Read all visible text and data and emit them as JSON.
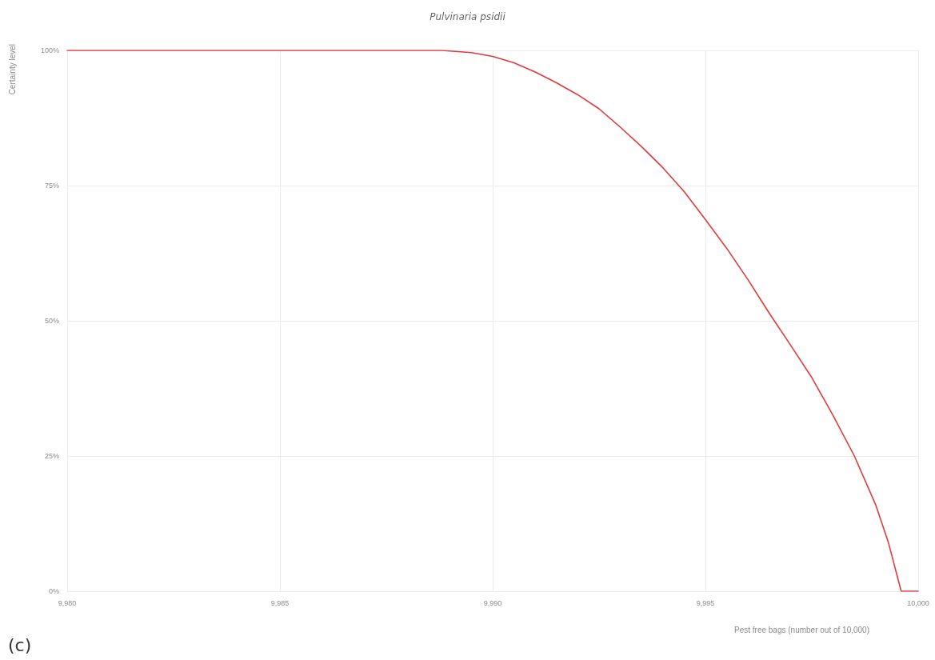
{
  "chart_data": {
    "type": "line",
    "title": "Pulvinaria psidii",
    "xlabel": "Pest free bags (number out of 10,000)",
    "ylabel": "Certainty level",
    "annotations": [
      "(c)"
    ],
    "x": [
      9980,
      9988.8,
      9989.5,
      9990,
      9990.5,
      9991,
      9991.5,
      9992,
      9992.5,
      9993,
      9993.5,
      9994,
      9994.5,
      9995,
      9995.5,
      9996,
      9996.5,
      9997,
      9997.5,
      9998,
      9998.5,
      9999,
      9999.3,
      9999.6,
      10000
    ],
    "series": [
      {
        "color": "#e03a3c",
        "values": [
          100,
          100,
          99.6,
          98.9,
          97.7,
          96,
          94,
          91.8,
          89.2,
          85.8,
          82.2,
          78.3,
          73.9,
          68.7,
          63.4,
          57.6,
          51.4,
          45.5,
          39.5,
          32.5,
          25,
          16,
          9,
          0,
          0
        ]
      }
    ],
    "xlim": [
      9980,
      10000
    ],
    "xticks": [
      {
        "value": 9980,
        "label": "9,980"
      },
      {
        "value": 9985,
        "label": "9,985"
      },
      {
        "value": 9990,
        "label": "9,990"
      },
      {
        "value": 9995,
        "label": "9,995"
      },
      {
        "value": 10000,
        "label": "10,000"
      }
    ],
    "ylim": [
      0,
      100
    ],
    "yticks": [
      {
        "value": 0,
        "label": "0%"
      },
      {
        "value": 25,
        "label": "25%"
      },
      {
        "value": 50,
        "label": "50%"
      },
      {
        "value": 75,
        "label": "75%"
      },
      {
        "value": 100,
        "label": "100%"
      }
    ],
    "grid": true,
    "marker": "none",
    "line_style": "solid"
  }
}
